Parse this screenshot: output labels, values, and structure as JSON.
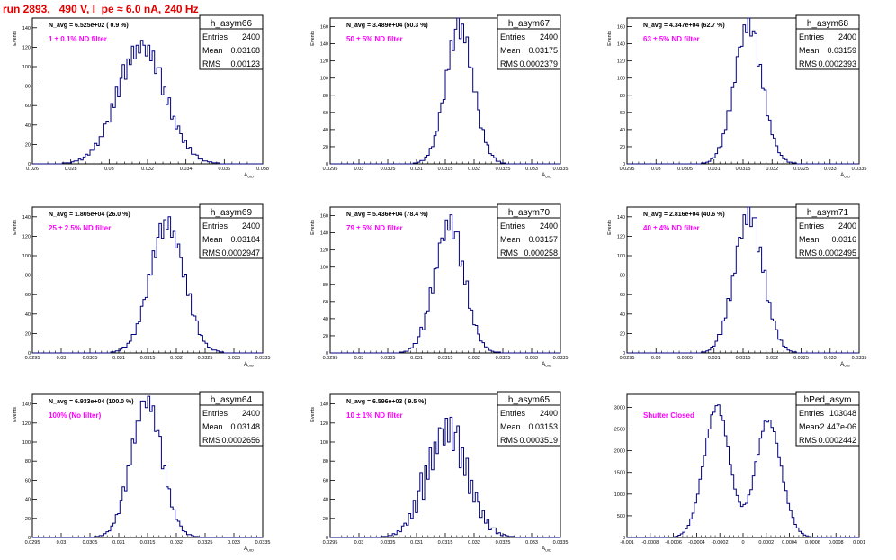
{
  "run_title": "run 2893,   490 V, I_pe ≈ 6.0 nA, 240 Hz",
  "colors": {
    "hist_line": "#00007f",
    "annotation": "#ff00ff",
    "title": "#e00000",
    "frame": "#000000"
  },
  "chart_data": [
    {
      "type": "histogram",
      "name": "h_asym66",
      "navg_text": "N_avg = 6.525e+02 ( 0.9 %)",
      "annotation": "1 ± 0.1% ND filter",
      "stats": [
        [
          "Entries",
          "2400"
        ],
        [
          "Mean",
          "0.03168"
        ],
        [
          "RMS",
          "0.00123"
        ]
      ],
      "ylabel": "Events",
      "xlabel": "A_UID",
      "xlim": [
        0.026,
        0.038
      ],
      "ylim": [
        0,
        150
      ],
      "x_ticks": [
        "0.026",
        "0.028",
        "0.03",
        "0.032",
        "0.034",
        "0.036",
        "0.038"
      ],
      "y_ticks": [
        "0",
        "20",
        "40",
        "60",
        "80",
        "100",
        "120",
        "140"
      ],
      "x_tick_values": [
        0.026,
        0.028,
        0.03,
        0.032,
        0.034,
        0.036,
        0.038
      ],
      "y_tick_values": [
        0,
        20,
        40,
        60,
        80,
        100,
        120,
        140
      ],
      "mu": 0.03168,
      "sigma": 0.00123,
      "peak": 120,
      "wiggle": [
        3,
        -6,
        8,
        -4,
        10,
        -7,
        5,
        12,
        -9,
        6,
        -5,
        9,
        -8,
        4,
        -6,
        7
      ]
    },
    {
      "type": "histogram",
      "name": "h_asym67",
      "navg_text": "N_avg = 3.489e+04 (50.3 %)",
      "annotation": "50 ± 5% ND filter",
      "stats": [
        [
          "Entries",
          "2400"
        ],
        [
          "Mean",
          "0.03175"
        ],
        [
          "RMS",
          "0.0002379"
        ]
      ],
      "ylabel": "Events",
      "xlabel": "A_UID",
      "xlim": [
        0.0295,
        0.0335
      ],
      "ylim": [
        0,
        170
      ],
      "x_ticks": [
        "0.0295",
        "0.03",
        "0.0305",
        "0.031",
        "0.0315",
        "0.032",
        "0.0325",
        "0.033",
        "0.0335"
      ],
      "y_ticks": [
        "0",
        "20",
        "40",
        "60",
        "80",
        "100",
        "120",
        "140",
        "160"
      ],
      "x_tick_values": [
        0.0295,
        0.03,
        0.0305,
        0.031,
        0.0315,
        0.032,
        0.0325,
        0.033,
        0.0335
      ],
      "y_tick_values": [
        0,
        20,
        40,
        60,
        80,
        100,
        120,
        140,
        160
      ],
      "mu": 0.03175,
      "sigma": 0.0002379,
      "peak": 158,
      "wiggle": [
        4,
        -8,
        10,
        -5,
        14,
        -10,
        6,
        16,
        -12,
        8,
        -6,
        12,
        -9,
        5,
        -7,
        9
      ]
    },
    {
      "type": "histogram",
      "name": "h_asym68",
      "navg_text": "N_avg = 4.347e+04 (62.7 %)",
      "annotation": "63 ± 5% ND filter",
      "stats": [
        [
          "Entries",
          "2400"
        ],
        [
          "Mean",
          "0.03159"
        ],
        [
          "RMS",
          "0.0002393"
        ]
      ],
      "ylabel": "Events",
      "xlabel": "A_UID",
      "xlim": [
        0.0295,
        0.0335
      ],
      "ylim": [
        0,
        170
      ],
      "x_ticks": [
        "0.0295",
        "0.03",
        "0.0305",
        "0.031",
        "0.0315",
        "0.032",
        "0.0325",
        "0.033",
        "0.0335"
      ],
      "y_ticks": [
        "0",
        "20",
        "40",
        "60",
        "80",
        "100",
        "120",
        "140",
        "160"
      ],
      "x_tick_values": [
        0.0295,
        0.03,
        0.0305,
        0.031,
        0.0315,
        0.032,
        0.0325,
        0.033,
        0.0335
      ],
      "y_tick_values": [
        0,
        20,
        40,
        60,
        80,
        100,
        120,
        140,
        160
      ],
      "mu": 0.03159,
      "sigma": 0.0002393,
      "peak": 160,
      "wiggle": [
        5,
        -7,
        9,
        -6,
        12,
        -8,
        6,
        14,
        -10,
        7,
        -5,
        10,
        -8,
        4,
        -6,
        8
      ]
    },
    {
      "type": "histogram",
      "name": "h_asym69",
      "navg_text": "N_avg = 1.805e+04 (26.0 %)",
      "annotation": "25 ± 2.5% ND filter",
      "stats": [
        [
          "Entries",
          "2400"
        ],
        [
          "Mean",
          "0.03184"
        ],
        [
          "RMS",
          "0.0002947"
        ]
      ],
      "ylabel": "Events",
      "xlabel": "A_UID",
      "xlim": [
        0.0295,
        0.0335
      ],
      "ylim": [
        0,
        150
      ],
      "x_ticks": [
        "0.0295",
        "0.03",
        "0.0305",
        "0.031",
        "0.0315",
        "0.032",
        "0.0325",
        "0.033",
        "0.0335"
      ],
      "y_ticks": [
        "0",
        "20",
        "40",
        "60",
        "80",
        "100",
        "120",
        "140"
      ],
      "x_tick_values": [
        0.0295,
        0.03,
        0.0305,
        0.031,
        0.0315,
        0.032,
        0.0325,
        0.033,
        0.0335
      ],
      "y_tick_values": [
        0,
        20,
        40,
        60,
        80,
        100,
        120,
        140
      ],
      "mu": 0.03184,
      "sigma": 0.0002947,
      "peak": 132,
      "wiggle": [
        3,
        -6,
        8,
        -4,
        10,
        -7,
        5,
        12,
        -9,
        6,
        -5,
        9,
        -8,
        4,
        -6,
        7
      ]
    },
    {
      "type": "histogram",
      "name": "h_asym70",
      "navg_text": "N_avg = 5.436e+04 (78.4 %)",
      "annotation": "79 ± 5% ND filter",
      "stats": [
        [
          "Entries",
          "2400"
        ],
        [
          "Mean",
          "0.03157"
        ],
        [
          "RMS",
          "0.000258"
        ]
      ],
      "ylabel": "Events",
      "xlabel": "A_UID",
      "xlim": [
        0.0295,
        0.0335
      ],
      "ylim": [
        0,
        170
      ],
      "x_ticks": [
        "0.0295",
        "0.03",
        "0.0305",
        "0.031",
        "0.0315",
        "0.032",
        "0.0325",
        "0.033",
        "0.0335"
      ],
      "y_ticks": [
        "0",
        "20",
        "40",
        "60",
        "80",
        "100",
        "120",
        "140",
        "160"
      ],
      "x_tick_values": [
        0.0295,
        0.03,
        0.0305,
        0.031,
        0.0315,
        0.032,
        0.0325,
        0.033,
        0.0335
      ],
      "y_tick_values": [
        0,
        20,
        40,
        60,
        80,
        100,
        120,
        140,
        160
      ],
      "mu": 0.03157,
      "sigma": 0.000258,
      "peak": 148,
      "wiggle": [
        4,
        -8,
        10,
        -5,
        14,
        -10,
        6,
        16,
        -12,
        8,
        -6,
        12,
        -9,
        5,
        -7,
        9
      ]
    },
    {
      "type": "histogram",
      "name": "h_asym71",
      "navg_text": "N_avg = 2.816e+04 (40.6 %)",
      "annotation": "40 ± 4% ND filter",
      "stats": [
        [
          "Entries",
          "2400"
        ],
        [
          "Mean",
          "0.0316"
        ],
        [
          "RMS",
          "0.0002495"
        ]
      ],
      "ylabel": "Events",
      "xlabel": "A_UID",
      "xlim": [
        0.0295,
        0.0335
      ],
      "ylim": [
        0,
        150
      ],
      "x_ticks": [
        "0.0295",
        "0.03",
        "0.0305",
        "0.031",
        "0.0315",
        "0.032",
        "0.0325",
        "0.033",
        "0.0335"
      ],
      "y_ticks": [
        "0",
        "20",
        "40",
        "60",
        "80",
        "100",
        "120",
        "140"
      ],
      "x_tick_values": [
        0.0295,
        0.03,
        0.0305,
        0.031,
        0.0315,
        0.032,
        0.0325,
        0.033,
        0.0335
      ],
      "y_tick_values": [
        0,
        20,
        40,
        60,
        80,
        100,
        120,
        140
      ],
      "mu": 0.0316,
      "sigma": 0.0002495,
      "peak": 140,
      "wiggle": [
        5,
        -7,
        9,
        -6,
        12,
        -8,
        6,
        14,
        -10,
        7,
        -5,
        10,
        -8,
        4,
        -6,
        8
      ]
    },
    {
      "type": "histogram",
      "name": "h_asym64",
      "navg_text": "N_avg = 6.933e+04 (100.0 %)",
      "annotation": "100% (No filter)",
      "stats": [
        [
          "Entries",
          "2400"
        ],
        [
          "Mean",
          "0.03148"
        ],
        [
          "RMS",
          "0.0002656"
        ]
      ],
      "ylabel": "Events",
      "xlabel": "A_UID",
      "xlim": [
        0.0295,
        0.0335
      ],
      "ylim": [
        0,
        150
      ],
      "x_ticks": [
        "0.0295",
        "0.03",
        "0.0305",
        "0.031",
        "0.0315",
        "0.032",
        "0.0325",
        "0.033",
        "0.0335"
      ],
      "y_ticks": [
        "0",
        "20",
        "40",
        "60",
        "80",
        "100",
        "120",
        "140"
      ],
      "x_tick_values": [
        0.0295,
        0.03,
        0.0305,
        0.031,
        0.0315,
        0.032,
        0.0325,
        0.033,
        0.0335
      ],
      "y_tick_values": [
        0,
        20,
        40,
        60,
        80,
        100,
        120,
        140
      ],
      "mu": 0.03148,
      "sigma": 0.0002656,
      "peak": 142,
      "wiggle": [
        3,
        -6,
        8,
        -4,
        10,
        -7,
        5,
        12,
        -9,
        6,
        -5,
        9,
        -8,
        4,
        -6,
        7
      ]
    },
    {
      "type": "histogram",
      "name": "h_asym65",
      "navg_text": "N_avg = 6.596e+03 ( 9.5 %)",
      "annotation": "10 ± 1% ND filter",
      "stats": [
        [
          "Entries",
          "2400"
        ],
        [
          "Mean",
          "0.03153"
        ],
        [
          "RMS",
          "0.0003519"
        ]
      ],
      "ylabel": "Events",
      "xlabel": "A_UID",
      "xlim": [
        0.0295,
        0.0335
      ],
      "ylim": [
        0,
        150
      ],
      "x_ticks": [
        "0.0295",
        "0.03",
        "0.0305",
        "0.031",
        "0.0315",
        "0.032",
        "0.0325",
        "0.033",
        "0.0335"
      ],
      "y_ticks": [
        "0",
        "20",
        "40",
        "60",
        "80",
        "100",
        "120",
        "140"
      ],
      "x_tick_values": [
        0.0295,
        0.03,
        0.0305,
        0.031,
        0.0315,
        0.032,
        0.0325,
        0.033,
        0.0335
      ],
      "y_tick_values": [
        0,
        20,
        40,
        60,
        80,
        100,
        120,
        140
      ],
      "mu": 0.03153,
      "sigma": 0.0003519,
      "peak": 110,
      "wiggle": [
        8,
        -12,
        15,
        -10,
        18,
        -14,
        10,
        22,
        -16,
        12,
        -10,
        16,
        -14,
        8,
        -10,
        12
      ]
    },
    {
      "type": "histogram",
      "name": "hPed_asym",
      "navg_text": "",
      "annotation": "Shutter Closed",
      "stats": [
        [
          "Entries",
          "103048"
        ],
        [
          "Mean",
          "-2.447e-06"
        ],
        [
          "RMS",
          "0.0002442"
        ]
      ],
      "ylabel": "",
      "xlabel": "",
      "xlim": [
        -0.001,
        0.001
      ],
      "ylim": [
        0,
        3300
      ],
      "x_ticks": [
        "-0.001",
        "-0.0008",
        "-0.0006",
        "-0.0004",
        "-0.0002",
        "0",
        "0.0002",
        "0.0004",
        "0.0006",
        "0.0008",
        "0.001"
      ],
      "y_ticks": [
        "0",
        "500",
        "1000",
        "1500",
        "2000",
        "2500",
        "3000"
      ],
      "x_tick_values": [
        -0.001,
        -0.0008,
        -0.0006,
        -0.0004,
        -0.0002,
        0,
        0.0002,
        0.0004,
        0.0006,
        0.0008,
        0.001
      ],
      "y_tick_values": [
        0,
        500,
        1000,
        1500,
        2000,
        2500,
        3000
      ],
      "bimodal": [
        [
          -0.00022,
          0.000115,
          3050
        ],
        [
          0.00021,
          0.000115,
          2750
        ]
      ],
      "wiggle": [
        20,
        -40,
        50,
        -30,
        60,
        -45,
        30,
        70,
        -55,
        40,
        -30,
        50,
        -40,
        25,
        -35,
        45
      ]
    }
  ]
}
